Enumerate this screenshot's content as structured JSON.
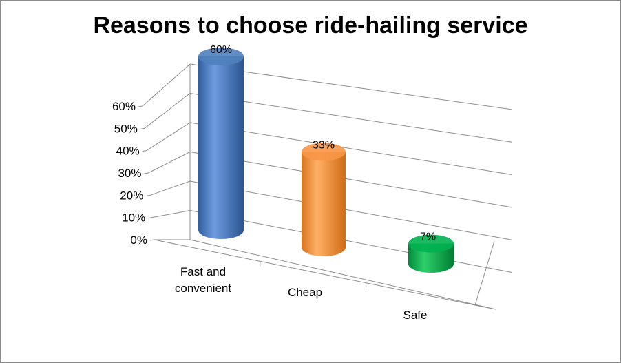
{
  "chart_data": {
    "type": "bar",
    "style": "3d-cylinder",
    "title": "Reasons to  choose ride-hailing service",
    "categories": [
      "Fast and convenient",
      "Cheap",
      "Safe"
    ],
    "category_lines": [
      [
        "Fast and",
        "convenient"
      ],
      [
        "Cheap"
      ],
      [
        "Safe"
      ]
    ],
    "values": [
      60,
      33,
      7
    ],
    "data_labels": [
      "60%",
      "33%",
      "7%"
    ],
    "ylim": [
      0,
      60
    ],
    "yticks": [
      0,
      10,
      20,
      30,
      40,
      50,
      60
    ],
    "ytick_labels": [
      "0%",
      "10%",
      "20%",
      "30%",
      "40%",
      "50%",
      "60%"
    ],
    "grid": true,
    "legend": "none",
    "colors": [
      "#4f81bd",
      "#f79646",
      "#00b050"
    ]
  }
}
